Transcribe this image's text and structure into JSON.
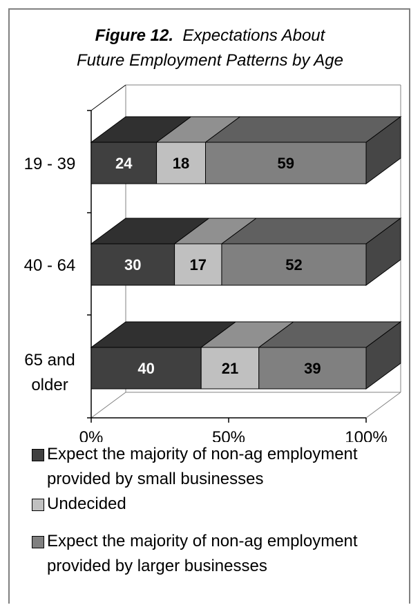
{
  "title": {
    "prefix": "Figure 12.",
    "line1": "Expectations About",
    "line2": "Future Employment Patterns by Age"
  },
  "colors": {
    "small": "#404040",
    "undecided": "#c0c0c0",
    "larger": "#808080"
  },
  "chart_data": {
    "type": "bar",
    "stacked": true,
    "orientation": "horizontal",
    "percent_stacked": true,
    "three_d": true,
    "categories": [
      "19 - 39",
      "40 - 64",
      "65 and older"
    ],
    "series": [
      {
        "name": "Expect the majority of non-ag employment provided by small businesses",
        "values": [
          24,
          30,
          40
        ],
        "color": "#404040"
      },
      {
        "name": "Undecided",
        "values": [
          18,
          17,
          21
        ],
        "color": "#c0c0c0"
      },
      {
        "name": "Expect the majority of non-ag employment provided by larger businesses",
        "values": [
          59,
          52,
          39
        ],
        "color": "#808080"
      }
    ],
    "xticks": [
      "0%",
      "50%",
      "100%"
    ],
    "xlim": [
      0,
      100
    ],
    "legend_position": "bottom",
    "grid": false
  }
}
